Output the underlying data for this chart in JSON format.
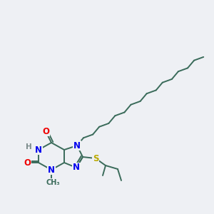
{
  "background_color": "#eef0f4",
  "atom_colors": {
    "C": "#3a6b5a",
    "N": "#0000ee",
    "O": "#ee0000",
    "S": "#bbaa00",
    "H": "#7a8a8a"
  },
  "bond_color": "#3a6b5a",
  "bond_width": 1.4,
  "font_size_atoms": 8.5,
  "figsize": [
    3.0,
    3.0
  ],
  "dpi": 100
}
